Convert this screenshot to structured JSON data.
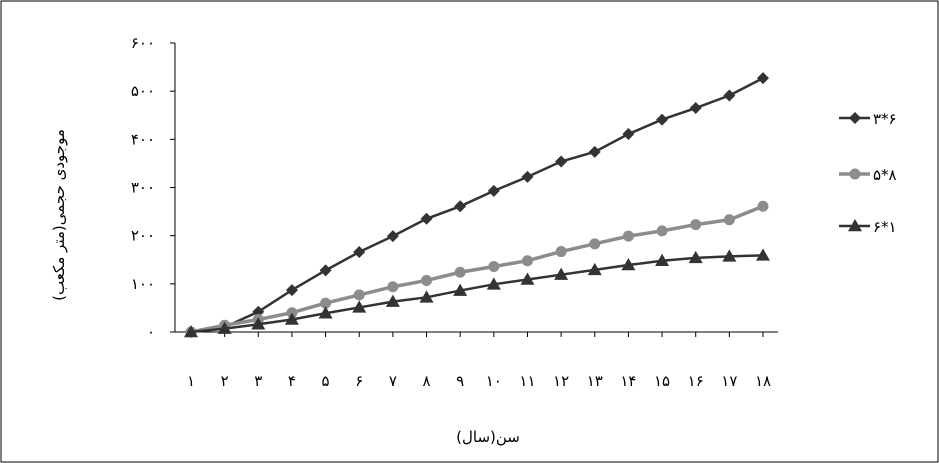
{
  "chart_data": {
    "type": "line",
    "title": "",
    "xlabel": "سن(سال)",
    "ylabel": "موجودی حجمی(متر مکعب)",
    "ylim": [
      0,
      600
    ],
    "yticks": [
      0,
      100,
      200,
      300,
      400,
      500,
      600
    ],
    "ytick_labels": [
      "۰",
      "۱۰۰",
      "۲۰۰",
      "۳۰۰",
      "۴۰۰",
      "۵۰۰",
      "۶۰۰"
    ],
    "categories": [
      1,
      2,
      3,
      4,
      5,
      6,
      7,
      8,
      9,
      10,
      11,
      12,
      13,
      14,
      15,
      16,
      17,
      18
    ],
    "category_labels": [
      "۱",
      "۲",
      "۳",
      "۴",
      "۵",
      "۶",
      "۷",
      "۸",
      "۹",
      "۱۰",
      "۱۱",
      "۱۲",
      "۱۳",
      "۱۴",
      "۱۵",
      "۱۶",
      "۱۷",
      "۱۸"
    ],
    "grid": false,
    "legend_position": "right",
    "series": [
      {
        "name": "۳*۶",
        "marker": "diamond",
        "color": "#333333",
        "values": [
          0,
          10,
          42,
          87,
          128,
          166,
          199,
          235,
          261,
          293,
          322,
          354,
          374,
          411,
          441,
          465,
          491,
          527
        ]
      },
      {
        "name": "۵*۸",
        "marker": "circle",
        "color": "#8c8c8c",
        "values": [
          0,
          14,
          26,
          40,
          60,
          77,
          94,
          107,
          124,
          136,
          148,
          167,
          183,
          199,
          210,
          223,
          233,
          261
        ]
      },
      {
        "name": "۶*۱",
        "marker": "triangle",
        "color": "#333333",
        "values": [
          0,
          7,
          16,
          26,
          39,
          51,
          63,
          72,
          86,
          99,
          109,
          119,
          129,
          139,
          148,
          154,
          157,
          159
        ]
      }
    ]
  }
}
